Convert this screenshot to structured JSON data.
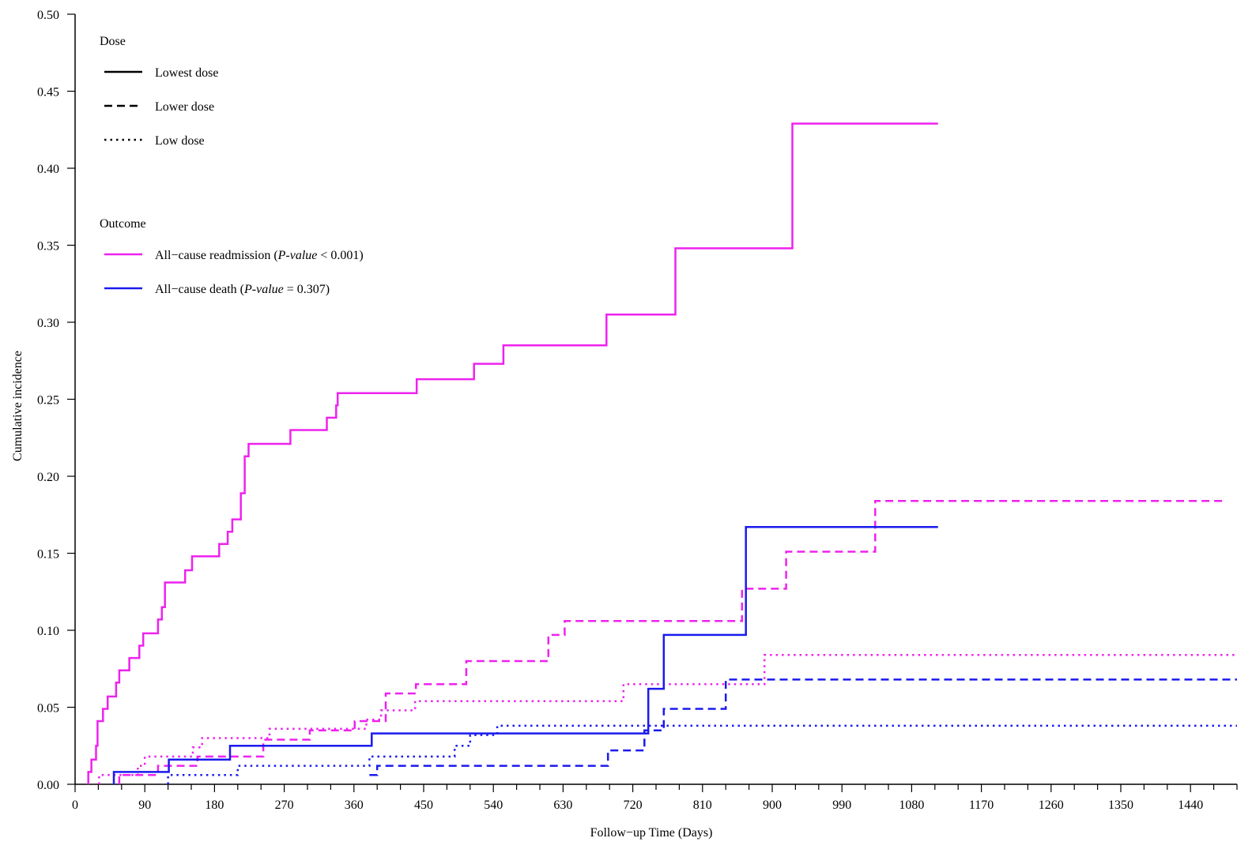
{
  "chart_data": {
    "type": "line",
    "step": true,
    "xlabel": "Follow−up Time (Days)",
    "ylabel": "Cumulative incidence",
    "xlim": [
      0,
      1500
    ],
    "ylim": [
      0,
      0.5
    ],
    "x_ticks": [
      0,
      90,
      180,
      270,
      360,
      450,
      540,
      630,
      720,
      810,
      900,
      990,
      1080,
      1170,
      1260,
      1350,
      1440
    ],
    "y_ticks": [
      0.0,
      0.05,
      0.1,
      0.15,
      0.2,
      0.25,
      0.3,
      0.35,
      0.4,
      0.45,
      0.5
    ],
    "y_tick_labels": [
      "0.00",
      "0.05",
      "0.10",
      "0.15",
      "0.20",
      "0.25",
      "0.30",
      "0.35",
      "0.40",
      "0.45",
      "0.50"
    ],
    "legend": {
      "placement": "top-left",
      "dose_title": "Dose",
      "dose_items": [
        {
          "label": "Lowest dose",
          "dash": "solid"
        },
        {
          "label": "Lower dose",
          "dash": "dashed"
        },
        {
          "label": "Low dose",
          "dash": "dotted"
        }
      ],
      "outcome_title": "Outcome",
      "outcome_items": [
        {
          "label_pre": "All−cause readmission (",
          "pval_label": "P-value",
          "label_post": " < 0.001)",
          "color": "#ee22ee"
        },
        {
          "label_pre": "All−cause death (",
          "pval_label": "P-value",
          "label_post": " = 0.307)",
          "color": "#1a1aee"
        }
      ]
    },
    "series": [
      {
        "outcome": "All−cause readmission",
        "dose": "Lowest dose",
        "color": "#ee22ee",
        "dash": "solid",
        "points": [
          [
            17,
            0
          ],
          [
            17,
            0.008
          ],
          [
            21,
            0.008
          ],
          [
            21,
            0.016
          ],
          [
            27,
            0.016
          ],
          [
            27,
            0.025
          ],
          [
            29,
            0.025
          ],
          [
            29,
            0.041
          ],
          [
            36,
            0.041
          ],
          [
            36,
            0.049
          ],
          [
            42,
            0.049
          ],
          [
            42,
            0.057
          ],
          [
            53,
            0.057
          ],
          [
            53,
            0.066
          ],
          [
            57,
            0.066
          ],
          [
            57,
            0.074
          ],
          [
            70,
            0.074
          ],
          [
            70,
            0.082
          ],
          [
            83,
            0.082
          ],
          [
            83,
            0.09
          ],
          [
            88,
            0.09
          ],
          [
            88,
            0.098
          ],
          [
            107,
            0.098
          ],
          [
            107,
            0.107
          ],
          [
            112,
            0.107
          ],
          [
            112,
            0.115
          ],
          [
            116,
            0.115
          ],
          [
            116,
            0.131
          ],
          [
            142,
            0.131
          ],
          [
            142,
            0.139
          ],
          [
            151,
            0.139
          ],
          [
            151,
            0.148
          ],
          [
            186,
            0.148
          ],
          [
            186,
            0.156
          ],
          [
            197,
            0.156
          ],
          [
            197,
            0.164
          ],
          [
            203,
            0.164
          ],
          [
            203,
            0.172
          ],
          [
            214,
            0.172
          ],
          [
            214,
            0.189
          ],
          [
            219,
            0.189
          ],
          [
            219,
            0.213
          ],
          [
            224,
            0.213
          ],
          [
            224,
            0.221
          ],
          [
            278,
            0.221
          ],
          [
            278,
            0.23
          ],
          [
            325,
            0.23
          ],
          [
            325,
            0.238
          ],
          [
            337,
            0.238
          ],
          [
            337,
            0.246
          ],
          [
            339,
            0.246
          ],
          [
            339,
            0.254
          ],
          [
            441,
            0.254
          ],
          [
            441,
            0.263
          ],
          [
            515,
            0.263
          ],
          [
            515,
            0.273
          ],
          [
            553,
            0.273
          ],
          [
            553,
            0.285
          ],
          [
            686,
            0.285
          ],
          [
            686,
            0.305
          ],
          [
            775,
            0.305
          ],
          [
            775,
            0.348
          ],
          [
            926,
            0.348
          ],
          [
            926,
            0.429
          ],
          [
            1114,
            0.429
          ]
        ]
      },
      {
        "outcome": "All−cause readmission",
        "dose": "Lower dose",
        "color": "#ee22ee",
        "dash": "dashed",
        "points": [
          [
            57,
            0
          ],
          [
            57,
            0.006
          ],
          [
            107,
            0.006
          ],
          [
            107,
            0.012
          ],
          [
            158,
            0.012
          ],
          [
            158,
            0.018
          ],
          [
            243,
            0.018
          ],
          [
            243,
            0.029
          ],
          [
            303,
            0.029
          ],
          [
            303,
            0.035
          ],
          [
            361,
            0.035
          ],
          [
            361,
            0.041
          ],
          [
            401,
            0.041
          ],
          [
            401,
            0.059
          ],
          [
            440,
            0.059
          ],
          [
            440,
            0.065
          ],
          [
            505,
            0.065
          ],
          [
            505,
            0.08
          ],
          [
            611,
            0.08
          ],
          [
            611,
            0.097
          ],
          [
            632,
            0.097
          ],
          [
            632,
            0.106
          ],
          [
            861,
            0.106
          ],
          [
            861,
            0.127
          ],
          [
            918,
            0.127
          ],
          [
            918,
            0.151
          ],
          [
            1033,
            0.151
          ],
          [
            1033,
            0.184
          ],
          [
            1484,
            0.184
          ]
        ]
      },
      {
        "outcome": "All−cause readmission",
        "dose": "Low dose",
        "color": "#ee22ee",
        "dash": "dotted",
        "points": [
          [
            31,
            0
          ],
          [
            31,
            0.006
          ],
          [
            81,
            0.006
          ],
          [
            81,
            0.012
          ],
          [
            90,
            0.012
          ],
          [
            90,
            0.018
          ],
          [
            152,
            0.018
          ],
          [
            152,
            0.024
          ],
          [
            164,
            0.024
          ],
          [
            164,
            0.03
          ],
          [
            251,
            0.03
          ],
          [
            251,
            0.036
          ],
          [
            376,
            0.036
          ],
          [
            376,
            0.042
          ],
          [
            395,
            0.042
          ],
          [
            395,
            0.048
          ],
          [
            439,
            0.048
          ],
          [
            439,
            0.054
          ],
          [
            708,
            0.054
          ],
          [
            708,
            0.065
          ],
          [
            890,
            0.065
          ],
          [
            890,
            0.084
          ],
          [
            1500,
            0.084
          ]
        ]
      },
      {
        "outcome": "All−cause death",
        "dose": "Lowest dose",
        "color": "#1a1aee",
        "dash": "solid",
        "points": [
          [
            50,
            0
          ],
          [
            50,
            0.008
          ],
          [
            121,
            0.008
          ],
          [
            121,
            0.016
          ],
          [
            200,
            0.016
          ],
          [
            200,
            0.025
          ],
          [
            383,
            0.025
          ],
          [
            383,
            0.033
          ],
          [
            740,
            0.033
          ],
          [
            740,
            0.062
          ],
          [
            760,
            0.062
          ],
          [
            760,
            0.097
          ],
          [
            866,
            0.097
          ],
          [
            866,
            0.167
          ],
          [
            1114,
            0.167
          ]
        ]
      },
      {
        "outcome": "All−cause death",
        "dose": "Lower dose",
        "color": "#1a1aee",
        "dash": "dashed",
        "points": [
          [
            380,
            0.006
          ],
          [
            390,
            0.006
          ],
          [
            390,
            0.012
          ],
          [
            688,
            0.012
          ],
          [
            688,
            0.022
          ],
          [
            735,
            0.022
          ],
          [
            735,
            0.035
          ],
          [
            760,
            0.035
          ],
          [
            760,
            0.049
          ],
          [
            840,
            0.049
          ],
          [
            840,
            0.068
          ],
          [
            1500,
            0.068
          ]
        ]
      },
      {
        "outcome": "All−cause death",
        "dose": "Low dose",
        "color": "#1a1aee",
        "dash": "dotted",
        "points": [
          [
            120,
            0
          ],
          [
            120,
            0.006
          ],
          [
            210,
            0.006
          ],
          [
            210,
            0.012
          ],
          [
            380,
            0.012
          ],
          [
            380,
            0.018
          ],
          [
            490,
            0.018
          ],
          [
            490,
            0.025
          ],
          [
            510,
            0.025
          ],
          [
            510,
            0.032
          ],
          [
            545,
            0.032
          ],
          [
            545,
            0.038
          ],
          [
            1500,
            0.038
          ]
        ]
      }
    ]
  }
}
